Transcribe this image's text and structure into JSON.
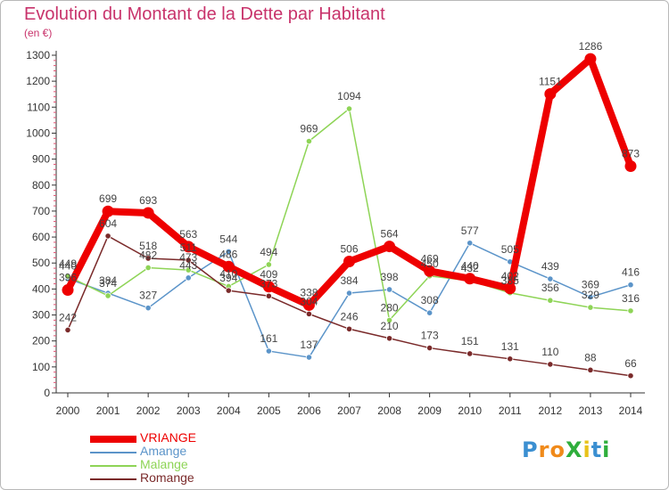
{
  "title": "Evolution du Montant de la Dette par Habitant",
  "unit_label": "(en €)",
  "logo": {
    "text": "ProXiti",
    "letters": [
      "P",
      "r",
      "o",
      "X",
      "i",
      "t",
      "i"
    ],
    "colors": [
      "#3b8fd1",
      "#f08a1a",
      "#f08a1a",
      "#2fae3c",
      "#e8c21a",
      "#3b8fd1",
      "#2fae3c"
    ]
  },
  "chart_data": {
    "type": "line",
    "x": [
      "2000",
      "2001",
      "2002",
      "2003",
      "2004",
      "2005",
      "2006",
      "2007",
      "2008",
      "2009",
      "2010",
      "2011",
      "2012",
      "2013",
      "2014"
    ],
    "ylim": [
      0,
      1300
    ],
    "yticks": [
      0,
      100,
      200,
      300,
      400,
      500,
      600,
      700,
      800,
      900,
      1000,
      1100,
      1200,
      1300
    ],
    "grid": false,
    "legend_position": "bottom-left",
    "series": [
      {
        "name": "VRIANGE",
        "color": "#ee0000",
        "labels": true,
        "values": [
          396,
          699,
          693,
          563,
          486,
          409,
          338,
          506,
          564,
          469,
          440,
          402,
          1151,
          1286,
          873
        ]
      },
      {
        "name": "Amange",
        "color": "#5b94c9",
        "labels": true,
        "values": [
          440,
          384,
          327,
          443,
          544,
          161,
          137,
          384,
          398,
          308,
          577,
          505,
          439,
          369,
          416
        ]
      },
      {
        "name": "Malange",
        "color": "#8ed456",
        "labels": true,
        "values": [
          449,
          374,
          482,
          473,
          410,
          494,
          969,
          1094,
          280,
          450,
          432,
          385,
          356,
          329,
          316
        ]
      },
      {
        "name": "Romange",
        "color": "#7a2a2a",
        "labels": true,
        "values": [
          242,
          604,
          518,
          511,
          394,
          373,
          304,
          246,
          210,
          173,
          151,
          131,
          110,
          88,
          66
        ]
      }
    ]
  }
}
